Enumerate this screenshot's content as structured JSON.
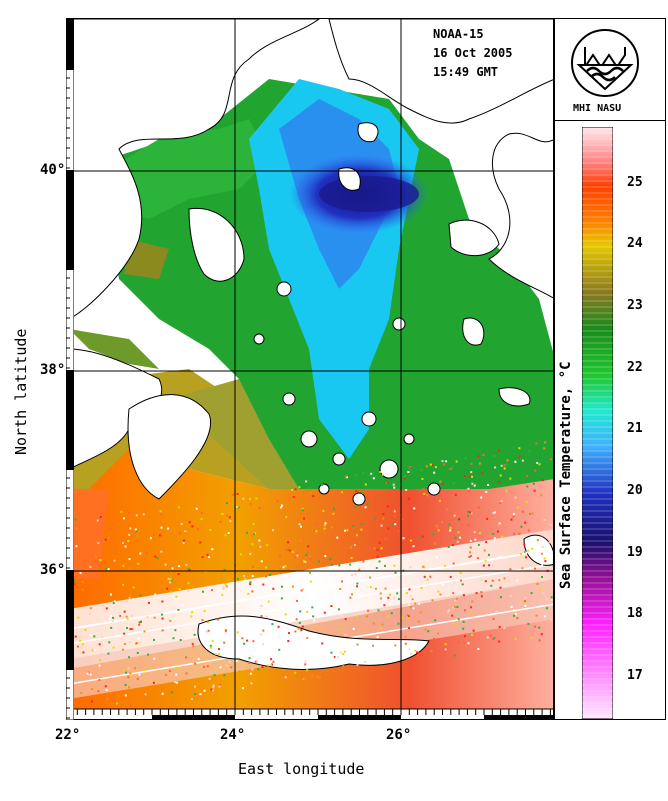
{
  "header": {
    "satellite": "NOAA-15",
    "date": "16 Oct 2005",
    "time": "15:49 GMT"
  },
  "logo": {
    "label": "MHI NASU"
  },
  "axes": {
    "x_label": "East longitude",
    "y_label": "North latitude",
    "x_ticks": [
      "22°",
      "24°",
      "26°"
    ],
    "y_ticks": [
      "40°",
      "38°",
      "36°"
    ]
  },
  "colorbar": {
    "title": "Sea Surface Temperature, °C",
    "ticks": [
      "25",
      "24",
      "23",
      "22",
      "21",
      "20",
      "19",
      "18",
      "17"
    ],
    "min": 16.3,
    "max": 25.9
  },
  "colors": {
    "land": "#ffffff",
    "cold": "#1a1aa0",
    "cool": "#00c8ff",
    "mid": "#1caa1c",
    "warm": "#e6c000",
    "hot": "#ff4000"
  }
}
